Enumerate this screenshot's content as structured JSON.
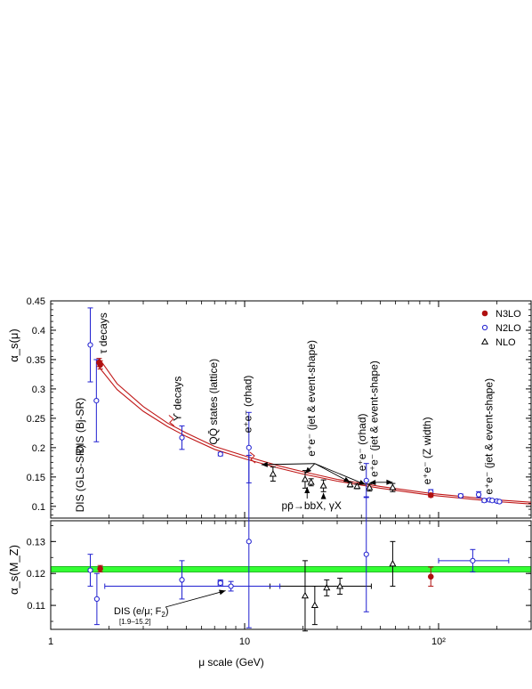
{
  "chart_data": [
    {
      "panel": "upper",
      "type": "scatter",
      "ylabel": "α_s(μ)",
      "xscale": "log",
      "xlim": [
        1,
        300
      ],
      "ylim": [
        0.08,
        0.45
      ],
      "y_ticks": [
        "0.1",
        "0.15",
        "0.2",
        "0.25",
        "0.3",
        "0.35",
        "0.4",
        "0.45"
      ],
      "legend": {
        "position": "top-right",
        "entries": [
          {
            "marker": "filled-circle",
            "color": "#b01010",
            "label": "N3LO"
          },
          {
            "marker": "open-circle",
            "color": "#2020d0",
            "label": "N2LO"
          },
          {
            "marker": "open-triangle",
            "color": "#000000",
            "label": "NLO"
          }
        ]
      },
      "band": {
        "color": "#c01818",
        "mu": [
          1.777,
          2.2,
          3,
          4,
          5,
          7,
          10,
          15,
          20,
          30,
          50,
          91.19,
          150,
          200,
          300
        ],
        "upper": [
          0.352,
          0.309,
          0.27,
          0.242,
          0.225,
          0.202,
          0.186,
          0.169,
          0.159,
          0.146,
          0.134,
          0.122,
          0.115,
          0.111,
          0.107
        ],
        "lower": [
          0.337,
          0.299,
          0.262,
          0.236,
          0.219,
          0.197,
          0.181,
          0.165,
          0.155,
          0.143,
          0.131,
          0.119,
          0.112,
          0.108,
          0.104
        ]
      },
      "series": [
        {
          "name": "N3LO",
          "points": [
            {
              "x": 1.777,
              "y": 0.345,
              "err": 0.007
            },
            {
              "x": 1.8,
              "y": 0.341,
              "err": 0.007
            },
            {
              "x": 91.19,
              "y": 0.119,
              "err": 0.003
            }
          ]
        },
        {
          "name": "N2LO",
          "points": [
            {
              "x": 1.6,
              "y": 0.375,
              "err": 0.063
            },
            {
              "x": 1.72,
              "y": 0.28,
              "err": 0.07
            },
            {
              "x": 4.75,
              "y": 0.217,
              "err": 0.02
            },
            {
              "x": 7.5,
              "y": 0.189,
              "err": 0.003
            },
            {
              "x": 10.52,
              "y": 0.2,
              "err": 0.06
            },
            {
              "x": 42.4,
              "y": 0.144,
              "err": 0.029
            },
            {
              "x": 91.2,
              "y": 0.1245,
              "err": 0.004
            },
            {
              "x": 130,
              "y": 0.118,
              "err": 0.003
            },
            {
              "x": 161,
              "y": 0.12,
              "err": 0.005
            },
            {
              "x": 172,
              "y": 0.11,
              "err": 0.003
            },
            {
              "x": 183,
              "y": 0.111,
              "err": 0.002
            },
            {
              "x": 189,
              "y": 0.11,
              "err": 0.002
            },
            {
              "x": 200,
              "y": 0.109,
              "err": 0.002
            },
            {
              "x": 206,
              "y": 0.108,
              "err": 0.002
            }
          ]
        },
        {
          "name": "NLO",
          "points": [
            {
              "x": 14,
              "y": 0.155,
              "err": 0.012
            },
            {
              "x": 20.5,
              "y": 0.146,
              "err": 0.015
            },
            {
              "x": 22,
              "y": 0.141,
              "err": 0.006
            },
            {
              "x": 25.5,
              "y": 0.135,
              "err": 0.01
            },
            {
              "x": 35,
              "y": 0.137,
              "err": 0.004
            },
            {
              "x": 38,
              "y": 0.134,
              "err": 0.004
            },
            {
              "x": 44,
              "y": 0.132,
              "err": 0.006
            },
            {
              "x": 58,
              "y": 0.132,
              "err": 0.007
            }
          ]
        }
      ],
      "annotations": [
        {
          "text": "DIS (Bj-SR)",
          "x": 1.48,
          "y": 0.19,
          "rotate": true
        },
        {
          "text": "DIS (GLS-SR)",
          "x": 1.48,
          "y": 0.09,
          "rotate": true
        },
        {
          "text": "τ decays",
          "x": 1.95,
          "y": 0.36,
          "rotate": true
        },
        {
          "text": "ϒ decays",
          "x": 4.7,
          "y": 0.245,
          "rotate": true
        },
        {
          "text": "QQ̄ states (lattice)",
          "x": 7.2,
          "y": 0.205,
          "rotate": true
        },
        {
          "text": "e⁺e⁻ (σhad)",
          "x": 10.8,
          "y": 0.225,
          "rotate": true
        },
        {
          "text": "e⁺e⁻ (jet & event-shape)",
          "x": 23,
          "y": 0.185,
          "rotate": true
        },
        {
          "text": "e⁺e⁻ (σhad)",
          "x": 42,
          "y": 0.16,
          "rotate": true
        },
        {
          "text": "e⁺e⁻ (jet & event-shape)",
          "x": 48.5,
          "y": 0.15,
          "rotate": true
        },
        {
          "text": "e⁺e⁻ (Z width)",
          "x": 91,
          "y": 0.137,
          "rotate": true
        },
        {
          "text": "e⁺e⁻ (jet & event-shape)",
          "x": 190,
          "y": 0.12,
          "rotate": true
        },
        {
          "text": "pp̄→bbX, γX",
          "x": 15.5,
          "y": 0.095,
          "rotate": false
        }
      ]
    },
    {
      "panel": "lower",
      "type": "scatter",
      "xlabel": "μ scale     (GeV)",
      "ylabel": "α_s(M_Z)",
      "xscale": "log",
      "xlim": [
        1,
        300
      ],
      "ylim": [
        0.1025,
        0.1365
      ],
      "y_ticks": [
        "0.11",
        "0.12",
        "0.13"
      ],
      "x_ticks": [
        "1",
        "10",
        "10²"
      ],
      "band": {
        "color": "#33ff33",
        "ymin": 0.1204,
        "ymax": 0.1222
      },
      "series": [
        {
          "name": "N3LO",
          "points": [
            {
              "x": 1.8,
              "y": 0.1215,
              "err": 0.001
            },
            {
              "x": 91.19,
              "y": 0.119,
              "err": 0.003
            }
          ]
        },
        {
          "name": "N2LO",
          "points": [
            {
              "x": 1.6,
              "y": 0.121,
              "err": 0.005
            },
            {
              "x": 1.73,
              "y": 0.112,
              "err": 0.008
            },
            {
              "x": 4.75,
              "y": 0.118,
              "err": 0.006,
              "xlo": 4.7,
              "xhi": 4.8
            },
            {
              "x": 7.5,
              "y": 0.117,
              "err": 0.001,
              "xlo": 7.3,
              "xhi": 7.7
            },
            {
              "x": 8.5,
              "y": 0.116,
              "err": 0.0015,
              "xlo": 1.9,
              "xhi": 15.2
            },
            {
              "x": 10.52,
              "y": 0.13,
              "err": 0.027
            },
            {
              "x": 42.4,
              "y": 0.126,
              "err": 0.018
            },
            {
              "x": 150,
              "y": 0.124,
              "err": 0.0035,
              "xlo": 100,
              "xhi": 230
            }
          ]
        },
        {
          "name": "NLO",
          "points": [
            {
              "x": 20.5,
              "y": 0.113,
              "err": 0.011
            },
            {
              "x": 23,
              "y": 0.11,
              "err": 0.006
            },
            {
              "x": 26.5,
              "y": 0.1155,
              "err": 0.0025
            },
            {
              "x": 31,
              "y": 0.116,
              "err": 0.0025,
              "xlo": 13.5,
              "xhi": 45
            },
            {
              "x": 58,
              "y": 0.123,
              "err": 0.007
            }
          ]
        }
      ],
      "annotations": [
        {
          "text": "DIS (e/μ; F",
          "sub": "2",
          "tail": ")",
          "note": "[1.9–15.2]"
        }
      ]
    }
  ]
}
